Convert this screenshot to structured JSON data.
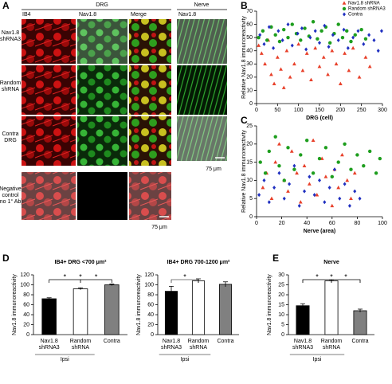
{
  "panel_a": {
    "label": "A",
    "drg_header": "DRG",
    "nerve_header": "Nerve",
    "columns": [
      "IB4",
      "Nav1.8",
      "Merge"
    ],
    "nerve_column": "Nav1.8",
    "rows": [
      "Nav1.8\nshRNA3",
      "Random\nshRNA",
      "Contra\nDRG",
      "Negative\ncontrol\n(no 1° Ab)"
    ],
    "scale_bars": [
      "75 μm",
      "75 μm"
    ]
  },
  "chart_data": [
    {
      "type": "scatter",
      "panel": "B",
      "xlabel": "DRG (cell)",
      "ylabel": "Relative Nav1.8 immunoreactivity",
      "xlim": [
        0,
        300
      ],
      "xticks": [
        0,
        50,
        100,
        150,
        200,
        250,
        300
      ],
      "ylim": [
        0,
        70
      ],
      "yticks": [
        0,
        10,
        20,
        30,
        40,
        50,
        60,
        70
      ],
      "legend": "top-right",
      "series": [
        {
          "name": "Nav1.8 shRNA",
          "color": "#e8402a",
          "marker": "triangle",
          "x": [
            5,
            12,
            20,
            28,
            35,
            42,
            50,
            58,
            65,
            72,
            80,
            90,
            100,
            110,
            120,
            130,
            140,
            150,
            160,
            170,
            180,
            190,
            200,
            210,
            220,
            230,
            245,
            260,
            270
          ],
          "values": [
            44,
            38,
            30,
            48,
            22,
            15,
            35,
            26,
            12,
            40,
            20,
            30,
            45,
            25,
            38,
            18,
            42,
            28,
            35,
            22,
            40,
            30,
            15,
            38,
            25,
            42,
            20,
            35,
            28
          ]
        },
        {
          "name": "Random shRNA3",
          "color": "#1e9e1e",
          "marker": "circle",
          "x": [
            5,
            15,
            25,
            35,
            45,
            55,
            65,
            75,
            85,
            95,
            105,
            115,
            125,
            135,
            145,
            155,
            165,
            175,
            185,
            195,
            205,
            215,
            225,
            235,
            250,
            260
          ],
          "values": [
            50,
            55,
            48,
            58,
            52,
            47,
            56,
            50,
            60,
            53,
            48,
            57,
            51,
            62,
            49,
            55,
            58,
            46,
            53,
            60,
            50,
            55,
            47,
            52,
            56,
            49
          ]
        },
        {
          "name": "Contra",
          "color": "#2030c0",
          "marker": "diamond",
          "x": [
            8,
            18,
            30,
            40,
            52,
            62,
            75,
            85,
            98,
            108,
            118,
            128,
            140,
            150,
            162,
            172,
            182,
            195,
            208,
            218,
            230,
            242,
            255,
            268,
            280,
            290,
            298
          ],
          "values": [
            52,
            45,
            58,
            42,
            55,
            48,
            60,
            44,
            53,
            57,
            41,
            50,
            55,
            46,
            59,
            43,
            52,
            48,
            56,
            42,
            50,
            55,
            45,
            52,
            48,
            40,
            55
          ]
        }
      ]
    },
    {
      "type": "scatter",
      "panel": "C",
      "xlabel": "Nerve (area)",
      "ylabel": "Relative Nav1.8 immunoreactivity",
      "xlim": [
        0,
        100
      ],
      "xticks": [
        0,
        20,
        40,
        60,
        80,
        100
      ],
      "ylim": [
        0,
        25
      ],
      "yticks": [
        0,
        5,
        10,
        15,
        20,
        25
      ],
      "series": [
        {
          "name": "Nav1.8 shRNA",
          "color": "#e8402a",
          "marker": "triangle",
          "x": [
            5,
            8,
            12,
            15,
            18,
            22,
            25,
            28,
            32,
            35,
            38,
            42,
            45,
            48,
            52,
            55,
            60,
            62,
            65,
            68,
            72,
            75,
            78
          ],
          "values": [
            8,
            12,
            5,
            15,
            20,
            10,
            7,
            18,
            12,
            4,
            14,
            9,
            21,
            6,
            16,
            11,
            3,
            13,
            8,
            17,
            10,
            5,
            12
          ]
        },
        {
          "name": "Random shRNA3",
          "color": "#1e9e1e",
          "marker": "circle",
          "x": [
            3,
            7,
            10,
            15,
            18,
            22,
            25,
            30,
            35,
            40,
            45,
            50,
            55,
            60,
            65,
            70,
            75,
            80,
            85,
            90,
            95,
            98
          ],
          "values": [
            15,
            12,
            18,
            22,
            14,
            10,
            19,
            13,
            17,
            21,
            12,
            16,
            19,
            11,
            15,
            20,
            13,
            17,
            14,
            18,
            12,
            16
          ]
        },
        {
          "name": "Contra",
          "color": "#2030c0",
          "marker": "diamond",
          "x": [
            2,
            6,
            10,
            14,
            18,
            22,
            26,
            30,
            34,
            38,
            42,
            46,
            50,
            54,
            58,
            62,
            66,
            70,
            74,
            78,
            82
          ],
          "values": [
            6,
            10,
            4,
            8,
            12,
            5,
            9,
            14,
            3,
            7,
            11,
            6,
            10,
            4,
            8,
            13,
            5,
            9,
            3,
            7,
            5
          ]
        }
      ]
    },
    {
      "type": "bar",
      "panel": "D",
      "title": "IB4+ DRG <700 μm²",
      "ylabel": "Nav1.8 immunoreactivity",
      "categories": [
        "Nav1.8\nshRNA3",
        "Random\nshRNA",
        "Contra"
      ],
      "values": [
        72,
        92,
        100
      ],
      "errors": [
        2,
        2,
        1.5
      ],
      "colors": [
        "#000000",
        "#ffffff",
        "#808080"
      ],
      "ylim": [
        0,
        120
      ],
      "yticks": [
        0,
        20,
        40,
        60,
        80,
        100,
        120
      ],
      "group_label": "Ipsi",
      "significance": [
        {
          "pair": [
            0,
            1
          ],
          "label": "*"
        },
        {
          "pair": [
            1,
            2
          ],
          "label": "*"
        },
        {
          "pair": [
            0,
            2
          ],
          "label": "*"
        }
      ]
    },
    {
      "type": "bar",
      "title": "IB4+ DRG 700-1200 μm²",
      "ylabel": "Nav1.8 immunoreactivity",
      "categories": [
        "Nav1.8\nshRNA3",
        "Random\nshRNA",
        "Contra"
      ],
      "values": [
        87,
        108,
        101
      ],
      "errors": [
        10,
        4,
        5
      ],
      "colors": [
        "#000000",
        "#ffffff",
        "#808080"
      ],
      "ylim": [
        0,
        120
      ],
      "yticks": [
        0,
        20,
        40,
        60,
        80,
        100,
        120
      ],
      "group_label": "Ipsi",
      "significance": [
        {
          "pair": [
            0,
            1
          ],
          "label": "*"
        }
      ]
    },
    {
      "type": "bar",
      "panel": "E",
      "title": "Nerve",
      "ylabel": "Nav1.8 immunoreactivity",
      "categories": [
        "Nav1.8\nshRNA3",
        "Random\nshRNA",
        "Contra"
      ],
      "values": [
        14.5,
        27,
        12
      ],
      "errors": [
        1,
        0.5,
        0.8
      ],
      "colors": [
        "#000000",
        "#ffffff",
        "#808080"
      ],
      "ylim": [
        0,
        30
      ],
      "yticks": [
        0,
        5,
        10,
        15,
        20,
        25,
        30
      ],
      "group_label": "Ipsi",
      "significance": [
        {
          "pair": [
            0,
            1
          ],
          "label": "*"
        },
        {
          "pair": [
            1,
            2
          ],
          "label": "*"
        },
        {
          "pair": [
            0,
            2
          ],
          "label": "*"
        }
      ]
    }
  ]
}
